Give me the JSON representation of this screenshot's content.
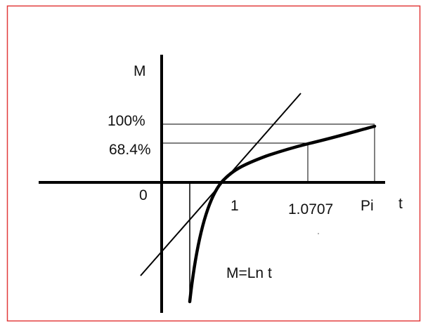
{
  "axes": {
    "y_label": "M",
    "x_label": "t",
    "origin": "0"
  },
  "y_marks": [
    "100%",
    "68.4%"
  ],
  "x_marks": [
    "1",
    "1.0707",
    "Pi"
  ],
  "equation": "M=Ln t"
}
